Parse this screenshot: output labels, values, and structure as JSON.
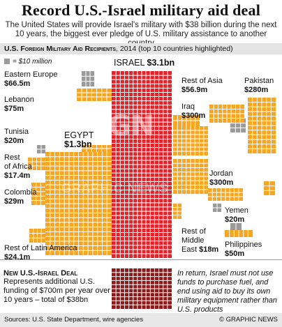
{
  "title": "Record U.S.-Israel military aid deal",
  "subtitle": "The United States will provide Israel's military with $38 billion during the next 10 years, the biggest ever pledge of U.S. military assistance to another country",
  "header": {
    "title_sc": "U.S. Foreign Military Aid Recipients",
    "title_rest": ", 2014 (top 10 countries highlighted)"
  },
  "legend": {
    "text": "= $10 million"
  },
  "colors": {
    "israel": "#e0242c",
    "egypt": "#f5a623",
    "other": "#f5a623",
    "gray": "#9a9a9a",
    "future": "#8b1a1a",
    "gridline": "#ffffff"
  },
  "chart_data": {
    "type": "treemap",
    "unit": "$10 million per square",
    "title": "U.S. Foreign Military Aid Recipients, 2014 (top 10 countries highlighted)",
    "series": [
      {
        "name": "ISRAEL",
        "label": "$3.1bn",
        "value_musd": 3100
      },
      {
        "name": "EGYPT",
        "label": "$1.3bn",
        "value_musd": 1300
      },
      {
        "name": "Iraq",
        "label": "$300m",
        "value_musd": 300
      },
      {
        "name": "Jordan",
        "label": "$300m",
        "value_musd": 300
      },
      {
        "name": "Pakistan",
        "label": "$280m",
        "value_musd": 280
      },
      {
        "name": "Lebanon",
        "label": "$75m",
        "value_musd": 75
      },
      {
        "name": "Eastern Europe",
        "label": "$66.5m",
        "value_musd": 66.5
      },
      {
        "name": "Rest of Asia",
        "label": "$56.9m",
        "value_musd": 56.9
      },
      {
        "name": "Philippines",
        "label": "$50m",
        "value_musd": 50
      },
      {
        "name": "Colombia",
        "label": "$29m",
        "value_musd": 29
      },
      {
        "name": "Rest of Latin America",
        "label": "$24.1m",
        "value_musd": 24.1
      },
      {
        "name": "Tunisia",
        "label": "$20m",
        "value_musd": 20
      },
      {
        "name": "Yemen",
        "label": "$20m",
        "value_musd": 20
      },
      {
        "name": "Rest of Middle East",
        "label": "$18m",
        "value_musd": 18
      },
      {
        "name": "Rest of Africa",
        "label": "$17.4m",
        "value_musd": 17.4
      }
    ]
  },
  "labels": {
    "israel_name": "ISRAEL",
    "israel_val": "$3.1bn",
    "egypt_name": "EGYPT",
    "egypt_val": "$1.3bn",
    "eastern_europe_name": "Eastern Europe",
    "eastern_europe_val": "$66.5m",
    "lebanon_name": "Lebanon",
    "lebanon_val": "$75m",
    "tunisia_name": "Tunisia",
    "tunisia_val": "$20m",
    "rest_africa_name1": "Rest",
    "rest_africa_name2": "of Africa",
    "rest_africa_val": "$17.4m",
    "colombia_name": "Colombia",
    "colombia_val": "$29m",
    "rest_latam_name": "Rest of Latin America",
    "rest_latam_val": "$24.1m",
    "rest_asia_name": "Rest of Asia",
    "rest_asia_val": "$56.9m",
    "pakistan_name": "Pakistan",
    "pakistan_val": "$280m",
    "iraq_name": "Iraq",
    "iraq_val": "$300m",
    "jordan_name": "Jordan",
    "jordan_val": "$300m",
    "yemen_name": "Yemen",
    "yemen_val": "$20m",
    "rest_me_name1": "Rest of",
    "rest_me_name2": "Middle",
    "rest_me_name3": "East",
    "rest_me_val": "$18m",
    "philippines_name": "Philippines",
    "philippines_val": "$50m"
  },
  "deal": {
    "heading": "New U.S.-Israel Deal",
    "text": "Represents additional U.S. funding of $700m per year over 10 years – total of $38bn"
  },
  "note": "In return, Israel must not use funds to purchase fuel, and end using aid to buy its own military equipment rather than U.S. products",
  "watermark": {
    "logo": "GN",
    "text": "GRAPHIC NEWS"
  },
  "footer": {
    "sources": "Sources: U.S. State Department, wire agencies",
    "credit": "© GRAPHIC NEWS"
  }
}
